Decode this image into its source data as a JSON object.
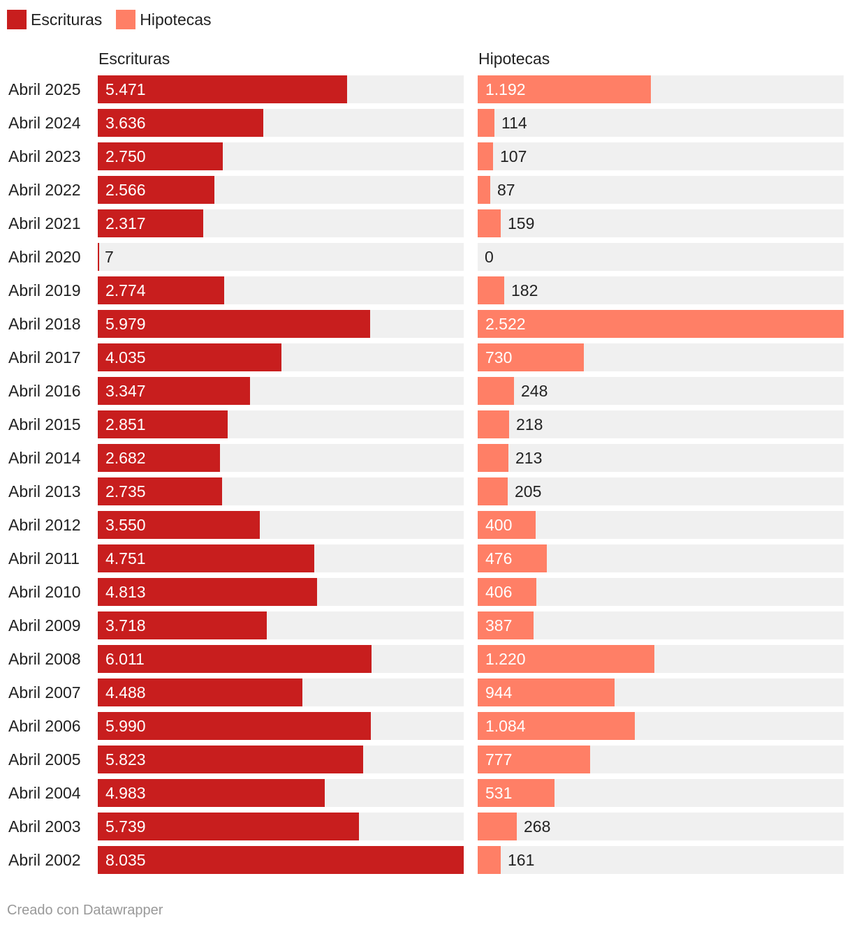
{
  "legend": [
    {
      "label": "Escrituras",
      "color": "#c81e1e"
    },
    {
      "label": "Hipotecas",
      "color": "#ff7f66"
    }
  ],
  "footer": "Creado con Datawrapper",
  "chart_data": {
    "type": "bar",
    "orientation": "horizontal",
    "legend_position": "top-left",
    "categories": [
      "Abril 2025",
      "Abril 2024",
      "Abril 2023",
      "Abril 2022",
      "Abril 2021",
      "Abril 2020",
      "Abril 2019",
      "Abril 2018",
      "Abril 2017",
      "Abril 2016",
      "Abril 2015",
      "Abril 2014",
      "Abril 2013",
      "Abril 2012",
      "Abril 2011",
      "Abril 2010",
      "Abril 2009",
      "Abril 2008",
      "Abril 2007",
      "Abril 2006",
      "Abril 2005",
      "Abril 2004",
      "Abril 2003",
      "Abril 2002"
    ],
    "series": [
      {
        "name": "Escrituras",
        "color": "#c81e1e",
        "max": 8035,
        "values": [
          5471,
          3636,
          2750,
          2566,
          2317,
          7,
          2774,
          5979,
          4035,
          3347,
          2851,
          2682,
          2735,
          3550,
          4751,
          4813,
          3718,
          6011,
          4488,
          5990,
          5823,
          4983,
          5739,
          8035
        ],
        "labels": [
          "5.471",
          "3.636",
          "2.750",
          "2.566",
          "2.317",
          "7",
          "2.774",
          "5.979",
          "4.035",
          "3.347",
          "2.851",
          "2.682",
          "2.735",
          "3.550",
          "4.751",
          "4.813",
          "3.718",
          "6.011",
          "4.488",
          "5.990",
          "5.823",
          "4.983",
          "5.739",
          "8.035"
        ]
      },
      {
        "name": "Hipotecas",
        "color": "#ff7f66",
        "max": 2522,
        "values": [
          1192,
          114,
          107,
          87,
          159,
          0,
          182,
          2522,
          730,
          248,
          218,
          213,
          205,
          400,
          476,
          406,
          387,
          1220,
          944,
          1084,
          777,
          531,
          268,
          161
        ],
        "labels": [
          "1.192",
          "114",
          "107",
          "87",
          "159",
          "0",
          "182",
          "2.522",
          "730",
          "248",
          "218",
          "213",
          "205",
          "400",
          "476",
          "406",
          "387",
          "1.220",
          "944",
          "1.084",
          "777",
          "531",
          "268",
          "161"
        ]
      }
    ]
  }
}
